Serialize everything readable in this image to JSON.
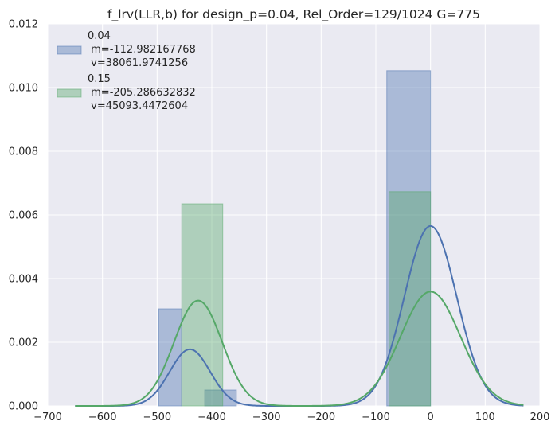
{
  "chart_data": {
    "type": "bar",
    "title": "f_lrv(LLR,b) for design_p=0.04, Rel_Order=129/1024 G=775",
    "xlabel": "",
    "ylabel": "",
    "xlim": [
      -700,
      200
    ],
    "ylim": [
      0,
      0.012
    ],
    "xticks": [
      -700,
      -600,
      -500,
      -400,
      -300,
      -200,
      -100,
      0,
      100,
      200
    ],
    "xtick_labels": [
      "−700",
      "−600",
      "−500",
      "−400",
      "−300",
      "−200",
      "−100",
      "0",
      "100",
      "200"
    ],
    "yticks": [
      0,
      0.002,
      0.004,
      0.006,
      0.008,
      0.01,
      0.012
    ],
    "ytick_labels": [
      "0.000",
      "0.002",
      "0.004",
      "0.006",
      "0.008",
      "0.010",
      "0.012"
    ],
    "grid": true,
    "legend_position": "top-left",
    "series": [
      {
        "name": "0.04",
        "legend_lines": [
          "0.04",
          " m=-112.982167768",
          " v=38061.9741256"
        ],
        "color": "#4c72b0",
        "histogram": [
          {
            "x0": -497,
            "x1": -455,
            "height": 0.00305
          },
          {
            "x0": -455,
            "x1": -413,
            "height": 0.0
          },
          {
            "x0": -413,
            "x1": -355,
            "height": 0.0005
          },
          {
            "x0": -80,
            "x1": 0,
            "height": 0.01053
          }
        ],
        "kde_components": [
          {
            "mean": -440,
            "sd": 37,
            "weight": 0.165
          },
          {
            "mean": 0,
            "sd": 48,
            "weight": 0.68
          }
        ],
        "kde_range": [
          -650,
          170
        ]
      },
      {
        "name": "0.15",
        "legend_lines": [
          "0.15",
          " m=-205.286632832",
          " v=45093.4472604"
        ],
        "color": "#55a868",
        "histogram": [
          {
            "x0": -455,
            "x1": -380,
            "height": 0.00635
          },
          {
            "x0": -76,
            "x1": 0,
            "height": 0.00673
          }
        ],
        "kde_components": [
          {
            "mean": -425,
            "sd": 44,
            "weight": 0.365
          },
          {
            "mean": 0,
            "sd": 55,
            "weight": 0.495
          }
        ],
        "kde_range": [
          -650,
          170
        ]
      }
    ]
  }
}
